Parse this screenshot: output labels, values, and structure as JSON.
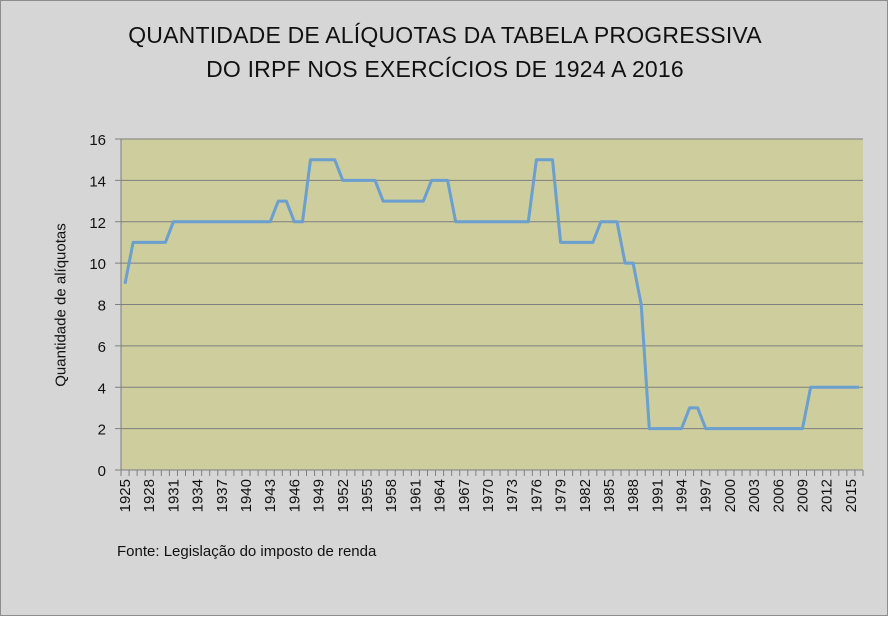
{
  "chart_data": {
    "type": "line",
    "title": [
      "QUANTIDADE DE ALÍQUOTAS DA TABELA PROGRESSIVA",
      "DO IRPF NOS EXERCÍCIOS DE 1924 A 2016"
    ],
    "xlabel": "",
    "ylabel": "Quantidade de alíquotas",
    "source": "Fonte: Legislação do imposto de renda",
    "x_start": 1925,
    "x_end": 2016,
    "x_tick_step": 3,
    "ylim": [
      0,
      16
    ],
    "y_ticks": [
      0,
      2,
      4,
      6,
      8,
      10,
      12,
      14,
      16
    ],
    "grid": true,
    "legend": "none",
    "series": [
      {
        "name": "Quantidade de alíquotas",
        "color": "#6a9fcf",
        "values": [
          9,
          11,
          11,
          11,
          11,
          11,
          12,
          12,
          12,
          12,
          12,
          12,
          12,
          12,
          12,
          12,
          12,
          12,
          12,
          13,
          13,
          12,
          12,
          15,
          15,
          15,
          15,
          14,
          14,
          14,
          14,
          14,
          13,
          13,
          13,
          13,
          13,
          13,
          14,
          14,
          14,
          12,
          12,
          12,
          12,
          12,
          12,
          12,
          12,
          12,
          12,
          15,
          15,
          15,
          11,
          11,
          11,
          11,
          11,
          12,
          12,
          12,
          10,
          10,
          8,
          2,
          2,
          2,
          2,
          2,
          3,
          3,
          2,
          2,
          2,
          2,
          2,
          2,
          2,
          2,
          2,
          2,
          2,
          2,
          2,
          4,
          4,
          4,
          4,
          4,
          4,
          4
        ]
      }
    ],
    "colors": {
      "plot_bg": "#cdcd9e",
      "frame_bg": "#d6d6d6",
      "grid": "#7f7f7f"
    }
  }
}
